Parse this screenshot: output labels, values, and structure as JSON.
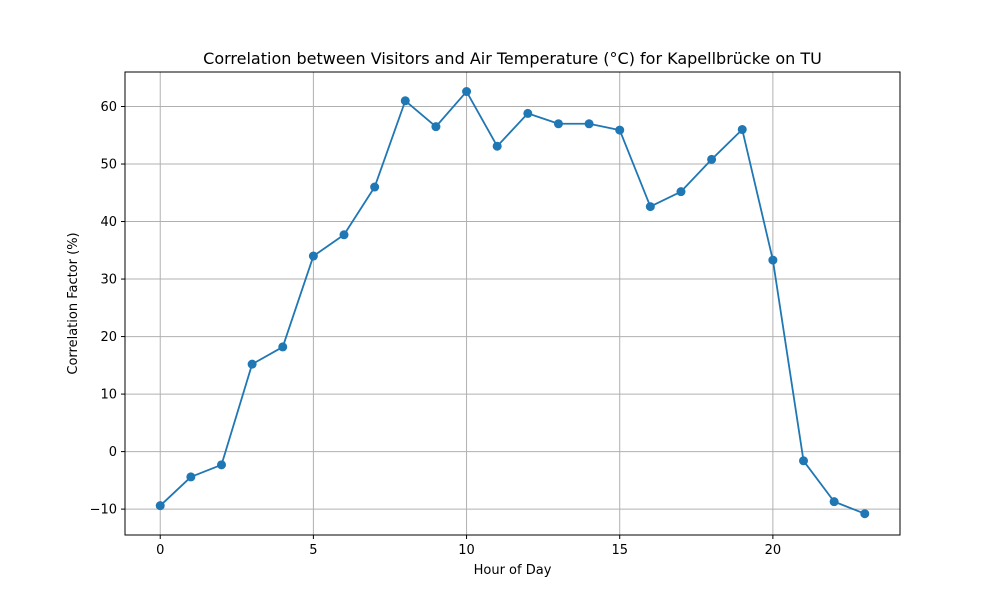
{
  "chart_data": {
    "type": "line",
    "title": "Correlation between Visitors and Air Temperature (°C) for Kapellbrücke on TU",
    "xlabel": "Hour of Day",
    "ylabel": "Correlation Factor (%)",
    "xlim": [
      -1.15,
      24.15
    ],
    "ylim": [
      -14.5,
      66
    ],
    "xticks": [
      0,
      5,
      10,
      15,
      20
    ],
    "yticks": [
      -10,
      0,
      10,
      20,
      30,
      40,
      50,
      60
    ],
    "grid": true,
    "series": [
      {
        "color": "#1f77b4",
        "marker": "circle",
        "x": [
          0,
          1,
          2,
          3,
          4,
          5,
          6,
          7,
          8,
          9,
          10,
          11,
          12,
          13,
          14,
          15,
          16,
          17,
          18,
          19,
          20,
          21,
          22,
          23
        ],
        "y": [
          -9.4,
          -4.4,
          -2.3,
          15.2,
          18.2,
          34.0,
          37.7,
          46.0,
          61.0,
          56.5,
          62.6,
          53.1,
          58.8,
          57.0,
          57.0,
          55.9,
          42.6,
          45.2,
          50.8,
          56.0,
          33.3,
          -1.6,
          -8.7,
          -10.8
        ]
      }
    ]
  }
}
